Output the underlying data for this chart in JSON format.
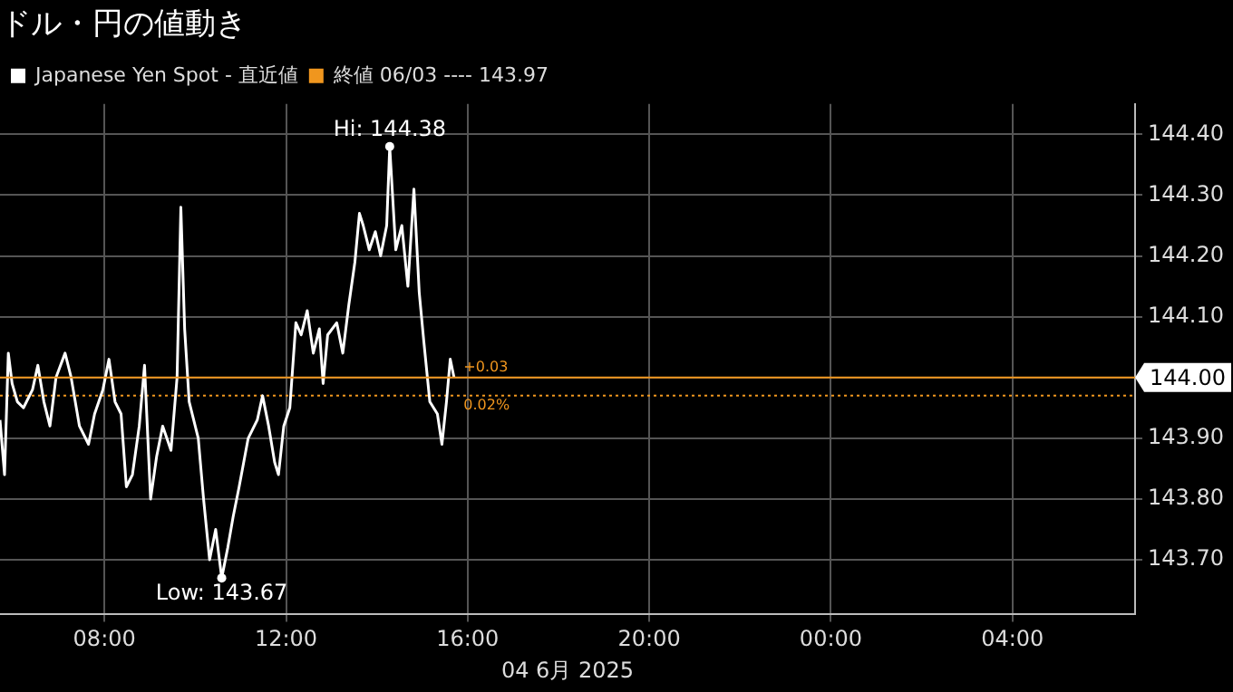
{
  "chart_data": {
    "type": "line",
    "title": "ドル・円の値動き",
    "xlabel": "04 6月 2025",
    "xlim": [
      "2025-06-04T05:42",
      "2025-06-05T06:42"
    ],
    "xticks": [
      {
        "value": "2025-06-04T08:00",
        "label": "08:00"
      },
      {
        "value": "2025-06-04T12:00",
        "label": "12:00"
      },
      {
        "value": "2025-06-04T16:00",
        "label": "16:00"
      },
      {
        "value": "2025-06-04T20:00",
        "label": "20:00"
      },
      {
        "value": "2025-06-05T00:00",
        "label": "00:00"
      },
      {
        "value": "2025-06-05T04:00",
        "label": "04:00"
      }
    ],
    "ylim": [
      143.61,
      144.45
    ],
    "yticks": [
      {
        "value": 143.7,
        "label": "143.70"
      },
      {
        "value": 143.8,
        "label": "143.80"
      },
      {
        "value": 143.9,
        "label": "143.90"
      },
      {
        "value": 144.0,
        "label": "144.00"
      },
      {
        "value": 144.1,
        "label": "144.10"
      },
      {
        "value": 144.2,
        "label": "144.20"
      },
      {
        "value": 144.3,
        "label": "144.30"
      },
      {
        "value": 144.4,
        "label": "144.40"
      }
    ],
    "series": [
      {
        "name": "Japanese Yen Spot - 直近値",
        "color": "#ffffff",
        "x": [
          "2025-06-04T05:42",
          "2025-06-04T05:48",
          "2025-06-04T05:53",
          "2025-06-04T05:58",
          "2025-06-04T06:05",
          "2025-06-04T06:13",
          "2025-06-04T06:25",
          "2025-06-04T06:32",
          "2025-06-04T06:40",
          "2025-06-04T06:48",
          "2025-06-04T06:56",
          "2025-06-04T07:08",
          "2025-06-04T07:16",
          "2025-06-04T07:27",
          "2025-06-04T07:39",
          "2025-06-04T07:47",
          "2025-06-04T07:58",
          "2025-06-04T08:06",
          "2025-06-04T08:14",
          "2025-06-04T08:22",
          "2025-06-04T08:29",
          "2025-06-04T08:37",
          "2025-06-04T08:46",
          "2025-06-04T08:53",
          "2025-06-04T09:01",
          "2025-06-04T09:09",
          "2025-06-04T09:17",
          "2025-06-04T09:28",
          "2025-06-04T09:36",
          "2025-06-04T09:41",
          "2025-06-04T09:46",
          "2025-06-04T09:52",
          "2025-06-04T10:04",
          "2025-06-04T10:11",
          "2025-06-04T10:19",
          "2025-06-04T10:27",
          "2025-06-04T10:35",
          "2025-06-04T10:43",
          "2025-06-04T10:50",
          "2025-06-04T10:58",
          "2025-06-04T11:10",
          "2025-06-04T11:22",
          "2025-06-04T11:29",
          "2025-06-04T11:37",
          "2025-06-04T11:45",
          "2025-06-04T11:50",
          "2025-06-04T11:57",
          "2025-06-04T12:05",
          "2025-06-04T12:13",
          "2025-06-04T12:20",
          "2025-06-04T12:28",
          "2025-06-04T12:36",
          "2025-06-04T12:44",
          "2025-06-04T12:49",
          "2025-06-04T12:55",
          "2025-06-04T13:07",
          "2025-06-04T13:15",
          "2025-06-04T13:23",
          "2025-06-04T13:31",
          "2025-06-04T13:37",
          "2025-06-04T13:42",
          "2025-06-04T13:50",
          "2025-06-04T13:58",
          "2025-06-04T14:05",
          "2025-06-04T14:13",
          "2025-06-04T14:17",
          "2025-06-04T14:25",
          "2025-06-04T14:33",
          "2025-06-04T14:41",
          "2025-06-04T14:49",
          "2025-06-04T14:56",
          "2025-06-04T15:02",
          "2025-06-04T15:10",
          "2025-06-04T15:20",
          "2025-06-04T15:26",
          "2025-06-04T15:32",
          "2025-06-04T15:37",
          "2025-06-04T15:42"
        ],
        "values": [
          143.93,
          143.84,
          144.04,
          143.99,
          143.96,
          143.95,
          143.98,
          144.02,
          143.96,
          143.92,
          144.0,
          144.04,
          144.0,
          143.92,
          143.89,
          143.94,
          143.98,
          144.03,
          143.96,
          143.94,
          143.82,
          143.84,
          143.92,
          144.02,
          143.8,
          143.87,
          143.92,
          143.88,
          144.0,
          144.28,
          144.08,
          143.96,
          143.9,
          143.8,
          143.7,
          143.75,
          143.67,
          143.72,
          143.77,
          143.82,
          143.9,
          143.93,
          143.97,
          143.92,
          143.86,
          143.84,
          143.92,
          143.95,
          144.09,
          144.07,
          144.11,
          144.04,
          144.08,
          143.99,
          144.07,
          144.09,
          144.04,
          144.12,
          144.19,
          144.27,
          144.25,
          144.21,
          144.24,
          144.2,
          144.25,
          144.38,
          144.21,
          144.25,
          144.15,
          144.31,
          144.14,
          144.06,
          143.96,
          143.94,
          143.89,
          143.96,
          144.03,
          144.0
        ]
      },
      {
        "name": "終値 06/03 ---- 143.97",
        "color": "#f0961e",
        "line_style": "dotted",
        "x": [
          "2025-06-04T05:42",
          "2025-06-05T06:42"
        ],
        "values": [
          143.97,
          143.97
        ]
      }
    ],
    "ref_lines": [
      {
        "axis": "y",
        "value": 144.0,
        "label": "144.00",
        "color": "#f0961e"
      }
    ],
    "annotations": [
      {
        "text": "Hi: 144.38",
        "x": "2025-06-04T14:17",
        "y": 144.38
      },
      {
        "text": "Low: 143.67",
        "x": "2025-06-04T10:35",
        "y": 143.67
      },
      {
        "text": "+0.03",
        "x": "2025-06-04T15:45",
        "y": 144.0
      },
      {
        "text": "0.02%",
        "x": "2025-06-04T15:45",
        "y": 143.97
      }
    ],
    "grid": true,
    "legend": "top left",
    "marker": "none"
  }
}
